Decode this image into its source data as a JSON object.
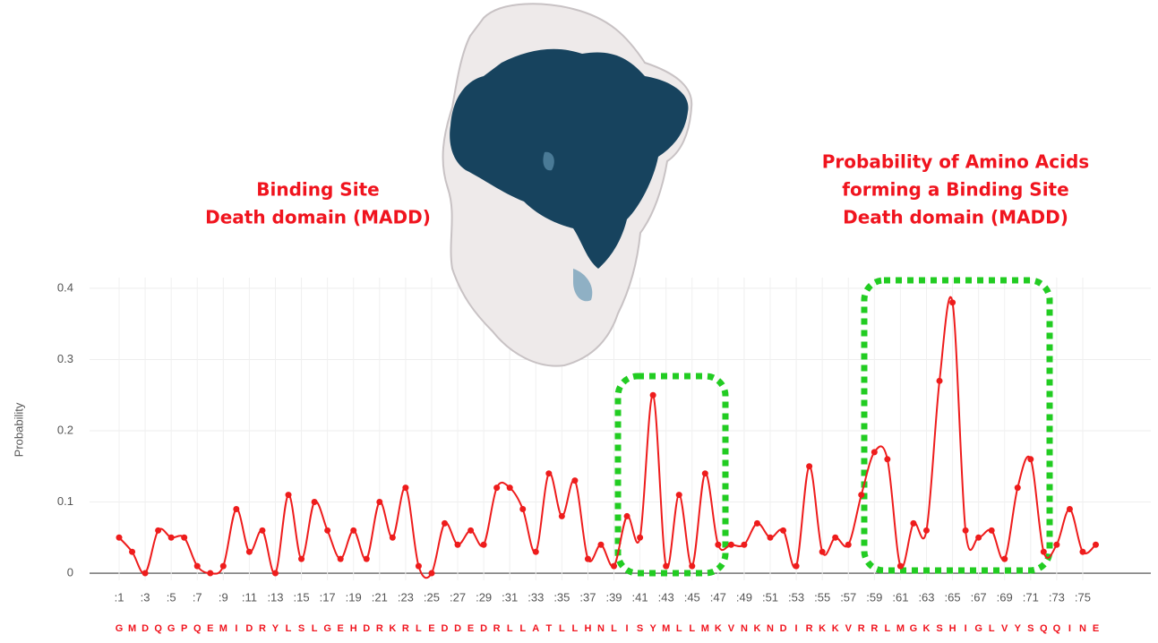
{
  "chart_data": {
    "type": "line",
    "title_left": [
      "Binding Site",
      "Death domain (MADD)"
    ],
    "title_right": [
      "Probability of Amino Acids",
      "forming a Binding Site",
      "Death domain (MADD)"
    ],
    "y_label": "Probability",
    "categories": [
      ":1",
      null,
      ":3",
      null,
      ":5",
      null,
      ":7",
      null,
      ":9",
      null,
      ":11",
      null,
      ":13",
      null,
      ":15",
      null,
      ":17",
      null,
      ":19",
      null,
      ":21",
      null,
      ":23",
      null,
      ":25",
      null,
      ":27",
      null,
      ":29",
      null,
      ":31",
      null,
      ":33",
      null,
      ":35",
      null,
      ":37",
      null,
      ":39",
      null,
      ":41",
      null,
      ":43",
      null,
      ":45",
      null,
      ":47",
      null,
      ":49",
      null,
      ":51",
      null,
      ":53",
      null,
      ":55",
      null,
      ":57",
      null,
      ":59",
      null,
      ":61",
      null,
      ":63",
      null,
      ":65",
      null,
      ":67",
      null,
      ":69",
      null,
      ":71",
      null,
      ":73",
      null,
      ":75",
      null
    ],
    "sequence": [
      "G",
      "M",
      "D",
      "Q",
      "G",
      "P",
      "Q",
      "E",
      "M",
      "I",
      "D",
      "R",
      "Y",
      "L",
      "S",
      "L",
      "G",
      "E",
      "H",
      "D",
      "R",
      "K",
      "R",
      "L",
      "E",
      "D",
      "D",
      "E",
      "D",
      "R",
      "L",
      "L",
      "A",
      "T",
      "L",
      "L",
      "H",
      "N",
      "L",
      "I",
      "S",
      "Y",
      "M",
      "L",
      "L",
      "M",
      "K",
      "V",
      "N",
      "K",
      "N",
      "D",
      "I",
      "R",
      "K",
      "K",
      "V",
      "R",
      "R",
      "L",
      "M",
      "G",
      "K",
      "S",
      "H",
      "I",
      "G",
      "L",
      "V",
      "Y",
      "S",
      "Q",
      "Q",
      "I",
      "N",
      "E"
    ],
    "series": [
      {
        "name": "Probability",
        "color": "#ee1c1c",
        "values": [
          0.05,
          0.03,
          0.0,
          0.06,
          0.05,
          0.05,
          0.01,
          0.0,
          0.01,
          0.09,
          0.03,
          0.06,
          0.0,
          0.11,
          0.02,
          0.1,
          0.06,
          0.02,
          0.06,
          0.02,
          0.1,
          0.05,
          0.12,
          0.01,
          0.0,
          0.07,
          0.04,
          0.06,
          0.04,
          0.12,
          0.12,
          0.09,
          0.03,
          0.14,
          0.08,
          0.13,
          0.02,
          0.04,
          0.01,
          0.08,
          0.05,
          0.25,
          0.01,
          0.11,
          0.01,
          0.14,
          0.04,
          0.04,
          0.04,
          0.07,
          0.05,
          0.06,
          0.01,
          0.15,
          0.03,
          0.05,
          0.04,
          0.11,
          0.17,
          0.16,
          0.01,
          0.07,
          0.06,
          0.27,
          0.38,
          0.06,
          0.05,
          0.06,
          0.02,
          0.12,
          0.16,
          0.03,
          0.04,
          0.09,
          0.03,
          0.04
        ]
      }
    ],
    "ylim": [
      -0.01,
      0.415
    ],
    "yticks": [
      0,
      0.1,
      0.2,
      0.3,
      0.4
    ],
    "grid": true
  }
}
